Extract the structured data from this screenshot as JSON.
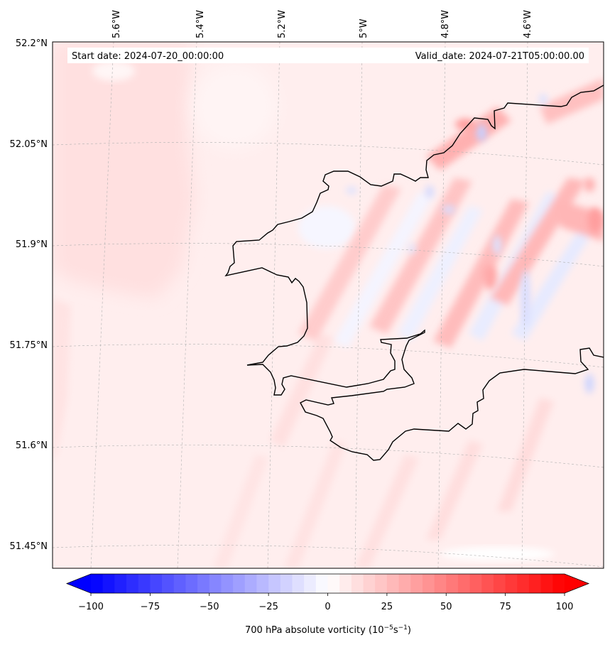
{
  "map": {
    "start_date": "Start date: 2024-07-20_00:00:00",
    "valid_date": "Valid_date: 2024-07-21T05:00:00.00",
    "lon_ticks": [
      "5.6°W",
      "5.4°W",
      "5.2°W",
      "5°W",
      "4.8°W",
      "4.6°W"
    ],
    "lat_ticks": [
      "52.2°N",
      "52.05°N",
      "51.9°N",
      "51.75°N",
      "51.6°N",
      "51.45°N"
    ]
  },
  "colorbar": {
    "title": "700 hPa absolute vorticity (10",
    "title_sup1": "−5",
    "title_mid": "s",
    "title_sup2": "−1",
    "title_end": ")",
    "min": -100,
    "max": 100,
    "step": 5,
    "tick_labels": [
      "−100",
      "−75",
      "−50",
      "−25",
      "0",
      "25",
      "50",
      "75",
      "100"
    ],
    "colors": {
      "negative": "#0000ff",
      "zero": "#ffffff",
      "positive": "#ff0000"
    }
  }
}
